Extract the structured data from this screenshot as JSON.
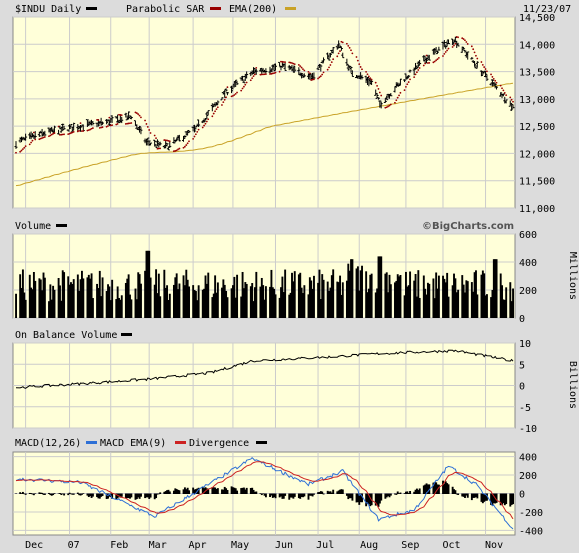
{
  "colors": {
    "panel_bg": "#ffffd9",
    "frame_bg": "#dcdcdc",
    "grid": "#cccccc",
    "price": "#000000",
    "sar": "#990000",
    "ema200": "#c9a227",
    "volume": "#000000",
    "obv": "#000000",
    "macd": "#2d6fd6",
    "macd_ema": "#cc2222",
    "divergence": "#000000"
  },
  "header": {
    "symbol": "$INDU Daily",
    "sar_label": "Parabolic SAR",
    "ema_label": "EMA(200)",
    "date": "11/23/07",
    "watermark": "©BigCharts.com"
  },
  "x_axis": {
    "labels": [
      "Dec",
      "07",
      "Feb",
      "Mar",
      "Apr",
      "May",
      "Jun",
      "Jul",
      "Aug",
      "Sep",
      "Oct",
      "Nov"
    ]
  },
  "chart_data": [
    {
      "type": "line",
      "title": "$INDU Daily",
      "series": [
        {
          "name": "$INDU Daily",
          "kind": "ohlc",
          "x": [
            "2006-11-24",
            "2006-12-15",
            "2007-01-05",
            "2007-01-26",
            "2007-02-16",
            "2007-02-27",
            "2007-03-14",
            "2007-04-04",
            "2007-04-25",
            "2007-05-16",
            "2007-06-06",
            "2007-06-27",
            "2007-07-17",
            "2007-07-26",
            "2007-08-10",
            "2007-08-16",
            "2007-08-31",
            "2007-09-19",
            "2007-10-09",
            "2007-10-24",
            "2007-11-07",
            "2007-11-21"
          ],
          "values": [
            12200,
            12380,
            12480,
            12560,
            12680,
            12200,
            12120,
            12450,
            13100,
            13500,
            13600,
            13400,
            14000,
            13500,
            13300,
            12900,
            13300,
            13750,
            14100,
            13650,
            13250,
            12850
          ]
        },
        {
          "name": "Parabolic SAR",
          "kind": "dots"
        },
        {
          "name": "EMA(200)",
          "values_start": 11400,
          "values_end": 13230
        }
      ],
      "y_ticks": [
        "11,000",
        "11,500",
        "12,000",
        "12,500",
        "13,000",
        "13,500",
        "14,000",
        "14,500"
      ],
      "ylim": [
        11000,
        14500
      ]
    },
    {
      "type": "area",
      "title": "Volume",
      "ylabel": "Millions",
      "series": [
        {
          "name": "Volume",
          "typical_range": [
            120,
            350
          ],
          "peaks": [
            480,
            420,
            440,
            420
          ]
        }
      ],
      "y_ticks": [
        "0",
        "200",
        "400",
        "600"
      ],
      "ylim": [
        0,
        600
      ]
    },
    {
      "type": "line",
      "title": "On Balance Volume",
      "ylabel": "Billions",
      "series": [
        {
          "name": "On Balance Volume",
          "x": [
            "2006-11-24",
            "2007-01-15",
            "2007-03-01",
            "2007-04-15",
            "2007-05-15",
            "2007-07-15",
            "2007-08-15",
            "2007-10-10",
            "2007-11-21"
          ],
          "values": [
            -0.5,
            0.5,
            1.5,
            3.0,
            5.8,
            6.8,
            7.5,
            8.2,
            5.8
          ]
        }
      ],
      "y_ticks": [
        "-10",
        "-5",
        "0",
        "5",
        "10"
      ],
      "ylim": [
        -10,
        10
      ]
    },
    {
      "type": "line",
      "title": "MACD(12,26)",
      "series": [
        {
          "name": "MACD(12,26)",
          "x": [
            "2006-11-24",
            "2007-01-10",
            "2007-03-05",
            "2007-05-15",
            "2007-06-25",
            "2007-07-20",
            "2007-08-15",
            "2007-09-10",
            "2007-10-05",
            "2007-10-25",
            "2007-11-21"
          ],
          "values": [
            160,
            120,
            -250,
            380,
            100,
            240,
            -280,
            -180,
            300,
            100,
            -380
          ]
        },
        {
          "name": "MACD EMA(9)"
        },
        {
          "name": "Divergence",
          "kind": "histogram"
        }
      ],
      "y_ticks": [
        "-400",
        "-200",
        "0",
        "200",
        "400"
      ],
      "ylim": [
        -400,
        400
      ]
    }
  ],
  "panels": {
    "volume": {
      "legend": "Volume"
    },
    "obv": {
      "legend": "On Balance Volume"
    },
    "macd": {
      "legend1": "MACD(12,26)",
      "legend2": "MACD EMA(9)",
      "legend3": "Divergence"
    }
  }
}
